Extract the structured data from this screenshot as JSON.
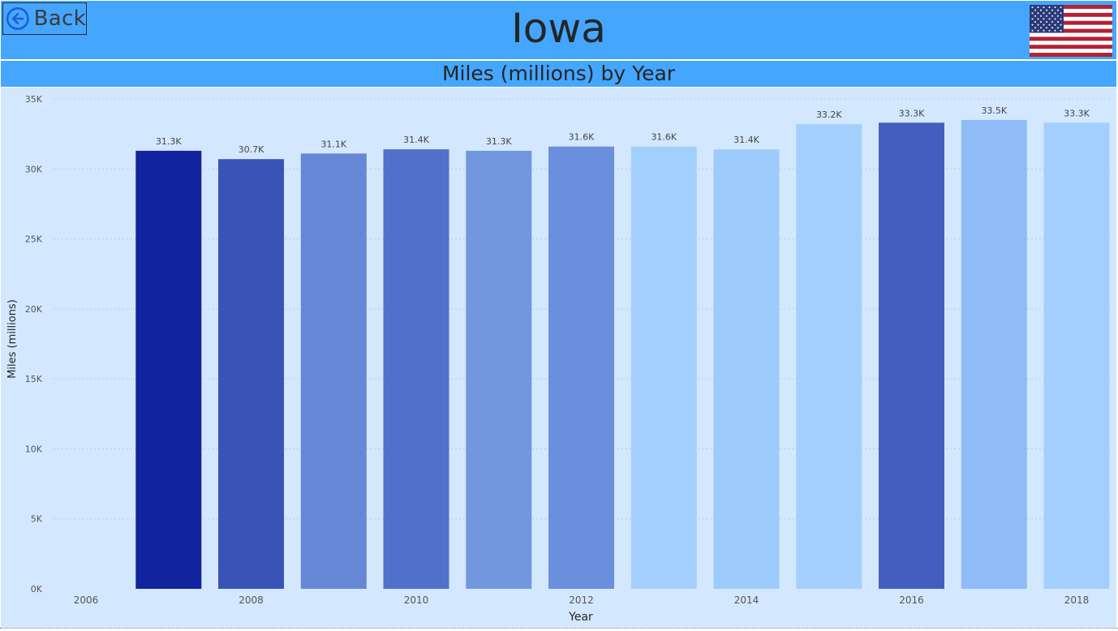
{
  "header": {
    "back_label": "Back",
    "title": "Iowa",
    "background": "#45a6ff",
    "back_icon": "arrow-left-circle-icon",
    "flag_icon": "us-flag-icon"
  },
  "chart_data": {
    "type": "bar",
    "title": "Miles (millions) by Year",
    "xlabel": "Year",
    "ylabel": "Miles (millions)",
    "x_ticks": [
      "2006",
      "2008",
      "2010",
      "2012",
      "2014",
      "2016",
      "2018"
    ],
    "y_ticks": [
      "0K",
      "5K",
      "10K",
      "15K",
      "20K",
      "25K",
      "30K",
      "35K"
    ],
    "ylim": [
      0,
      35000
    ],
    "xlim": [
      2005.5,
      2018.5
    ],
    "grid": true,
    "categories": [
      2007,
      2008,
      2009,
      2010,
      2011,
      2012,
      2013,
      2014,
      2015,
      2016,
      2017,
      2018
    ],
    "values": [
      31300,
      30700,
      31100,
      31400,
      31300,
      31600,
      31600,
      31400,
      33200,
      33300,
      33500,
      33300
    ],
    "labels": [
      "31.3K",
      "30.7K",
      "31.1K",
      "31.4K",
      "31.3K",
      "31.6K",
      "31.6K",
      "31.4K",
      "33.2K",
      "33.3K",
      "33.5K",
      "33.3K"
    ],
    "colors": [
      "#12239e",
      "#3a53b7",
      "#6686d6",
      "#5170cc",
      "#7197df",
      "#6a8fdc",
      "#a2cffe",
      "#9ccbfc",
      "#a2cffe",
      "#435ebf",
      "#8fbcf7",
      "#a2cffe"
    ],
    "plot_background": "#d3e8fe"
  }
}
